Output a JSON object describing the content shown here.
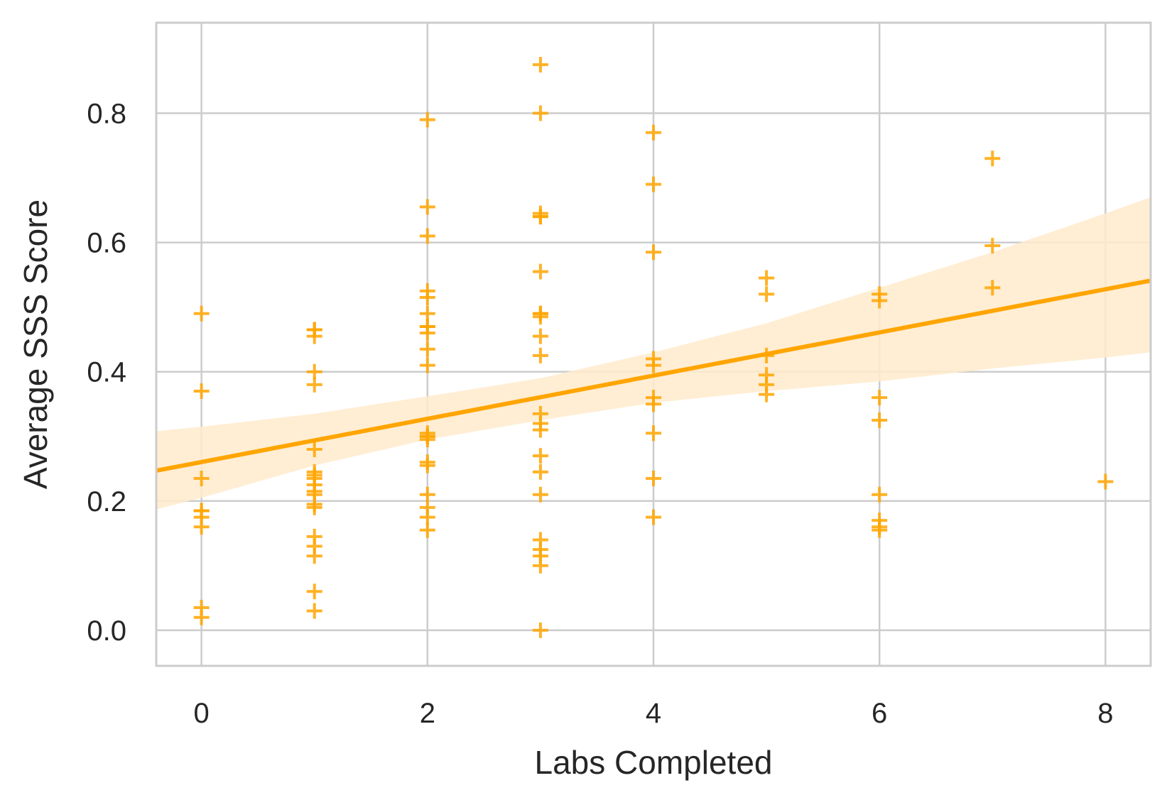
{
  "chart_data": {
    "type": "scatter",
    "title": "",
    "xlabel": "Labs Completed",
    "ylabel": "Average SSS Score",
    "xlim": [
      -0.4,
      8.4
    ],
    "ylim": [
      -0.055,
      0.94
    ],
    "xticks": [
      0,
      2,
      4,
      6,
      8
    ],
    "yticks": [
      0.0,
      0.2,
      0.4,
      0.6,
      0.8
    ],
    "xtick_labels": [
      "0",
      "2",
      "4",
      "6",
      "8"
    ],
    "ytick_labels": [
      "0.0",
      "0.2",
      "0.4",
      "0.6",
      "0.8"
    ],
    "grid": true,
    "marker": "+",
    "colors": {
      "points": "#FFA500",
      "regression": "#FFA500",
      "band": "#FFEBCC",
      "grid": "#CCCCCC",
      "text": "#262626"
    },
    "series": [
      {
        "x": [
          0,
          0,
          0,
          0,
          0,
          0,
          0,
          0,
          0,
          1,
          1,
          1,
          1,
          1,
          1,
          1,
          1,
          1,
          1,
          1,
          1,
          1,
          1,
          1,
          1,
          1,
          1,
          1,
          2,
          2,
          2,
          2,
          2,
          2,
          2,
          2,
          2,
          2,
          2,
          2,
          2,
          2,
          2,
          2,
          2,
          2,
          2,
          2,
          2,
          3,
          3,
          3,
          3,
          3,
          3,
          3,
          3,
          3,
          3,
          3,
          3,
          3,
          3,
          3,
          3,
          3,
          3,
          3,
          3,
          3,
          3,
          4,
          4,
          4,
          4,
          4,
          4,
          4,
          4,
          4,
          4,
          5,
          5,
          5,
          5,
          5,
          5,
          6,
          6,
          6,
          6,
          6,
          6,
          6,
          6,
          7,
          7,
          7,
          8
        ],
        "y": [
          0.49,
          0.37,
          0.235,
          0.185,
          0.175,
          0.16,
          0.035,
          0.02,
          0.185,
          0.465,
          0.455,
          0.4,
          0.38,
          0.28,
          0.245,
          0.235,
          0.225,
          0.215,
          0.21,
          0.195,
          0.19,
          0.145,
          0.13,
          0.115,
          0.06,
          0.03,
          0.465,
          0.24,
          0.79,
          0.655,
          0.61,
          0.525,
          0.515,
          0.49,
          0.47,
          0.46,
          0.435,
          0.41,
          0.305,
          0.3,
          0.295,
          0.26,
          0.255,
          0.21,
          0.19,
          0.175,
          0.155,
          0.47,
          0.3,
          0.875,
          0.8,
          0.645,
          0.64,
          0.555,
          0.49,
          0.485,
          0.455,
          0.425,
          0.335,
          0.32,
          0.31,
          0.27,
          0.245,
          0.21,
          0.14,
          0.125,
          0.115,
          0.1,
          0.0,
          0.64,
          0.49,
          0.77,
          0.69,
          0.585,
          0.42,
          0.41,
          0.36,
          0.35,
          0.305,
          0.235,
          0.175,
          0.545,
          0.52,
          0.425,
          0.395,
          0.38,
          0.365,
          0.52,
          0.51,
          0.36,
          0.325,
          0.21,
          0.17,
          0.16,
          0.155,
          0.73,
          0.595,
          0.53,
          0.23
        ]
      }
    ],
    "regression": {
      "x": [
        -0.4,
        8.4
      ],
      "y": [
        0.247,
        0.541
      ]
    },
    "confidence_band": {
      "x": [
        -0.4,
        0,
        1,
        2,
        3,
        4,
        5,
        6,
        7,
        8,
        8.4
      ],
      "lower": [
        0.187,
        0.205,
        0.255,
        0.295,
        0.325,
        0.352,
        0.37,
        0.385,
        0.405,
        0.422,
        0.43
      ],
      "upper": [
        0.308,
        0.315,
        0.335,
        0.362,
        0.39,
        0.43,
        0.475,
        0.53,
        0.585,
        0.645,
        0.67
      ]
    }
  }
}
